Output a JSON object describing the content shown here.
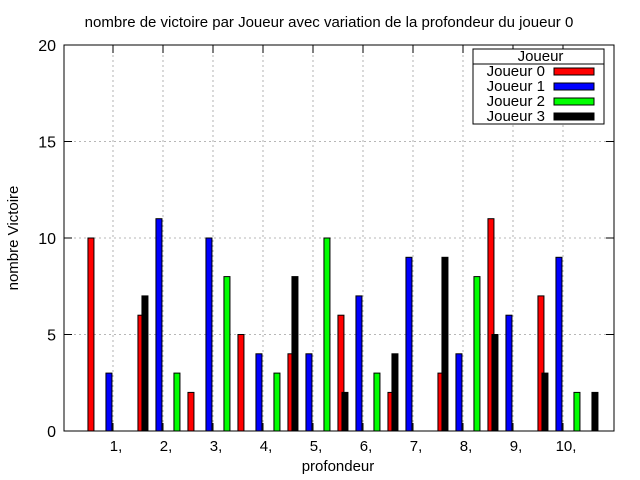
{
  "chart_data": {
    "type": "bar",
    "title": "nombre de victoire par Joueur avec variation de la profondeur du joueur 0",
    "xlabel": "profondeur",
    "ylabel": "nombre Victoire",
    "ylim": [
      0,
      20
    ],
    "yticks": [
      0,
      5,
      10,
      15,
      20
    ],
    "categories": [
      "1,",
      "2,",
      "3,",
      "4,",
      "5,",
      "6,",
      "7,",
      "8,",
      "9,",
      "10,"
    ],
    "grid": true,
    "legend": {
      "title": "Joueur",
      "placement": "top-right"
    },
    "series": [
      {
        "name": "Joueur 0",
        "color": "#ff0000",
        "values": [
          10,
          6,
          2,
          5,
          4,
          6,
          2,
          3,
          11,
          7
        ]
      },
      {
        "name": "Joueur 1",
        "color": "#0000ff",
        "values": [
          3,
          11,
          10,
          4,
          4,
          7,
          9,
          4,
          6,
          9
        ]
      },
      {
        "name": "Joueur 2",
        "color": "#00ff00",
        "values": [
          0,
          3,
          8,
          3,
          10,
          3,
          0,
          8,
          0,
          2
        ]
      },
      {
        "name": "Joueur 3",
        "color": "#000000",
        "values": [
          7,
          0,
          0,
          8,
          2,
          4,
          9,
          5,
          3,
          2
        ]
      }
    ]
  }
}
